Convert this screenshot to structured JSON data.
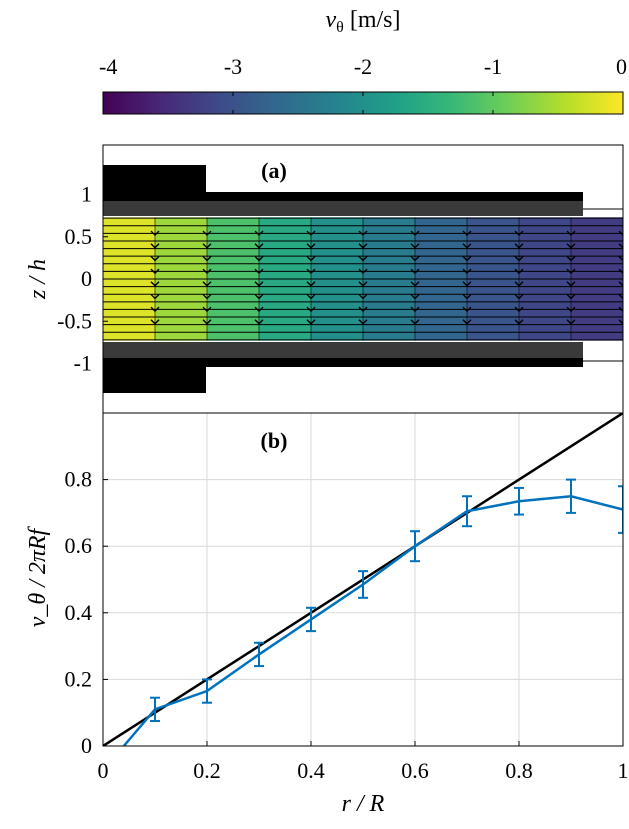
{
  "colorbar": {
    "label_symbol": "v",
    "label_sub": "θ",
    "label_unit": "[m/s]",
    "ticks": [
      "-4",
      "-3",
      "-2",
      "-1",
      "0"
    ],
    "range": [
      -4,
      0
    ],
    "colormap": [
      "#440154",
      "#482878",
      "#3e4a89",
      "#31688e",
      "#26828e",
      "#1f9e89",
      "#35b779",
      "#6ece58",
      "#b5de2b",
      "#fde725"
    ]
  },
  "chart_data": [
    {
      "panel": "(a)",
      "type": "heatmap",
      "ylabel": "z / h",
      "yticks": [
        "1",
        "0.5",
        "0",
        "-0.5",
        "-1"
      ],
      "ylim": [
        -1.3,
        1.3
      ],
      "xlim": [
        0,
        1
      ],
      "grid": false,
      "colorbar_label": "v_θ [m/s]",
      "columns": [
        {
          "r": 0.05,
          "v": -0.2
        },
        {
          "r": 0.15,
          "v": -0.6
        },
        {
          "r": 0.25,
          "v": -1.15
        },
        {
          "r": 0.35,
          "v": -1.6
        },
        {
          "r": 0.45,
          "v": -2.0
        },
        {
          "r": 0.55,
          "v": -2.35
        },
        {
          "r": 0.65,
          "v": -2.7
        },
        {
          "r": 0.75,
          "v": -2.95
        },
        {
          "r": 0.85,
          "v": -3.15
        },
        {
          "r": 0.95,
          "v": -3.3
        }
      ]
    },
    {
      "panel": "(b)",
      "type": "line",
      "xlabel": "r / R",
      "ylabel": "v_θ / 2πRf",
      "xlim": [
        0,
        1
      ],
      "ylim": [
        0,
        1
      ],
      "xticks": [
        "0",
        "0.2",
        "0.4",
        "0.6",
        "0.8",
        "1"
      ],
      "yticks": [
        "0",
        "0.2",
        "0.4",
        "0.6",
        "0.8"
      ],
      "grid": true,
      "series": [
        {
          "color": "#0072bd",
          "x": [
            0.04,
            0.1,
            0.2,
            0.3,
            0.4,
            0.5,
            0.6,
            0.7,
            0.8,
            0.9,
            1.0
          ],
          "y": [
            0.0,
            0.11,
            0.165,
            0.275,
            0.38,
            0.485,
            0.6,
            0.705,
            0.735,
            0.75,
            0.71
          ],
          "err": [
            null,
            0.035,
            0.035,
            0.035,
            0.035,
            0.04,
            0.045,
            0.045,
            0.04,
            0.05,
            0.07
          ]
        },
        {
          "color": "#000000",
          "x": [
            0,
            1
          ],
          "y": [
            0,
            1
          ]
        }
      ]
    }
  ]
}
